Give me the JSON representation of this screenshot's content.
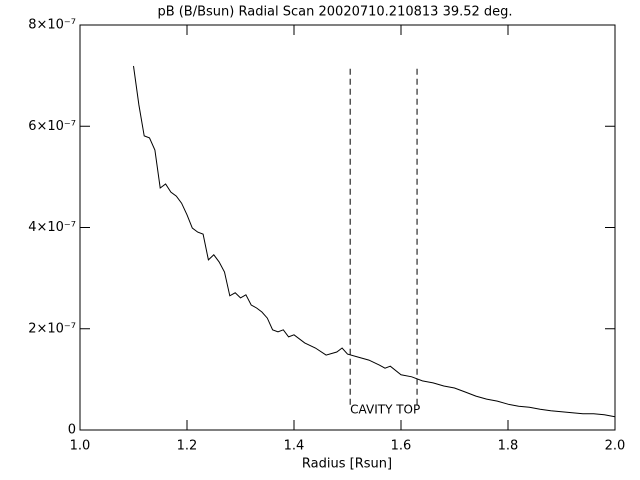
{
  "chart_data": {
    "type": "line",
    "title": "pB (B/Bsun) Radial Scan 20020710.210813 39.52 deg.",
    "x_label": "Radius [Rsun]",
    "xlim": [
      1.0,
      2.0
    ],
    "ylim": [
      0,
      8e-07
    ],
    "xticks": [
      {
        "value": 1,
        "label": "1.0"
      },
      1.2,
      1.4,
      1.6,
      1.8,
      {
        "value": 2,
        "label": "2.0"
      }
    ],
    "yticks": [
      0,
      {
        "value": 2e-07,
        "label": "2×10⁻⁷"
      },
      {
        "value": 4e-07,
        "label": "4×10⁻⁷"
      },
      {
        "value": 6e-07,
        "label": "6×10⁻⁷"
      },
      {
        "value": 8e-07,
        "label": "8×10⁻⁷"
      }
    ],
    "color": "#000000",
    "x": [
      1.1,
      1.11,
      1.12,
      1.13,
      1.14,
      1.15,
      1.16,
      1.17,
      1.18,
      1.19,
      1.2,
      1.21,
      1.22,
      1.23,
      1.24,
      1.25,
      1.26,
      1.27,
      1.28,
      1.29,
      1.3,
      1.31,
      1.32,
      1.33,
      1.34,
      1.35,
      1.36,
      1.37,
      1.38,
      1.39,
      1.4,
      1.42,
      1.44,
      1.46,
      1.48,
      1.49,
      1.5,
      1.52,
      1.54,
      1.56,
      1.57,
      1.58,
      1.6,
      1.62,
      1.64,
      1.66,
      1.68,
      1.7,
      1.72,
      1.74,
      1.76,
      1.78,
      1.8,
      1.82,
      1.84,
      1.86,
      1.88,
      1.9,
      1.92,
      1.94,
      1.96,
      1.98,
      2.0
    ],
    "values": [
      7.19e-07,
      6.42e-07,
      5.81e-07,
      5.77e-07,
      5.53e-07,
      4.78e-07,
      4.86e-07,
      4.7e-07,
      4.62e-07,
      4.48e-07,
      4.25e-07,
      3.99e-07,
      3.91e-07,
      3.87e-07,
      3.36e-07,
      3.46e-07,
      3.32e-07,
      3.12e-07,
      2.65e-07,
      2.71e-07,
      2.61e-07,
      2.67e-07,
      2.47e-07,
      2.41e-07,
      2.33e-07,
      2.21e-07,
      1.98e-07,
      1.94e-07,
      1.98e-07,
      1.84e-07,
      1.88e-07,
      1.72e-07,
      1.62e-07,
      1.48e-07,
      1.54e-07,
      1.62e-07,
      1.5e-07,
      1.44e-07,
      1.38e-07,
      1.28e-07,
      1.22e-07,
      1.26e-07,
      1.09e-07,
      1.05e-07,
      9.7e-08,
      9.3e-08,
      8.7e-08,
      8.3e-08,
      7.5e-08,
      6.7e-08,
      6.1e-08,
      5.7e-08,
      5.1e-08,
      4.7e-08,
      4.5e-08,
      4.1e-08,
      3.8e-08,
      3.6e-08,
      3.4e-08,
      3.2e-08,
      3.2e-08,
      3e-08,
      2.6e-08
    ],
    "vlines": [
      {
        "x": 1.505,
        "y": [
          5e-08,
          7.19e-07
        ]
      },
      {
        "x": 1.63,
        "y": [
          5e-08,
          7.19e-07
        ]
      }
    ],
    "annotation": {
      "text": "CAVITY TOP",
      "x": 1.505,
      "y": 4e-08,
      "color": "#e00000"
    }
  }
}
